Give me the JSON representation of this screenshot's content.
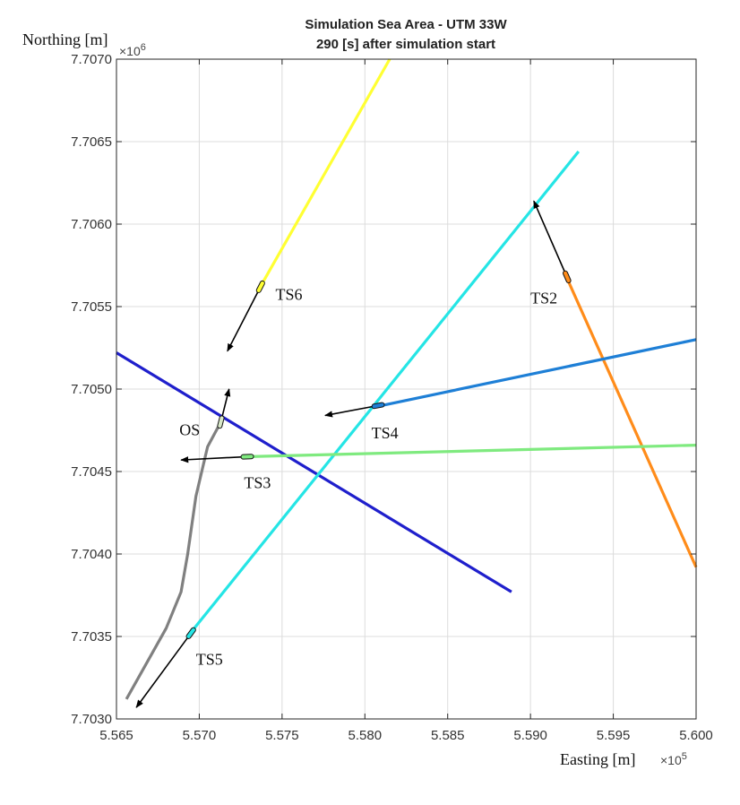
{
  "chart_data": {
    "type": "line",
    "title": "Simulation Sea Area - UTM 33W",
    "subtitle": "290 [s] after simulation start",
    "xlabel": "Easting [m]",
    "ylabel": "Northing [m]",
    "x_multiplier": "×10",
    "x_multiplier_exp": "5",
    "y_multiplier": "×10",
    "y_multiplier_exp": "6",
    "xlim": [
      556500,
      560000
    ],
    "ylim": [
      7703000,
      7707000
    ],
    "xticks": [
      556500,
      557000,
      557500,
      558000,
      558500,
      559000,
      559500,
      560000
    ],
    "xtick_labels": [
      "5.565",
      "5.570",
      "5.575",
      "5.580",
      "5.585",
      "5.590",
      "5.595",
      "5.600"
    ],
    "yticks": [
      7703000,
      7703500,
      7704000,
      7704500,
      7705000,
      7705500,
      7706000,
      7706500,
      7707000
    ],
    "ytick_labels": [
      "7.7030",
      "7.7035",
      "7.7040",
      "7.7045",
      "7.7050",
      "7.7055",
      "7.7060",
      "7.7065",
      "7.7070"
    ],
    "grid": true,
    "series": [
      {
        "color": "#1f1fcc",
        "points": [
          [
            556500,
            7705220
          ],
          [
            558885,
            7703770
          ]
        ]
      },
      {
        "color": "#25e5e5",
        "points": [
          [
            556970,
            7703550
          ],
          [
            559290,
            7706440
          ]
        ]
      },
      {
        "color": "#ffff33",
        "points": [
          [
            557380,
            7705640
          ],
          [
            558150,
            7707000
          ]
        ]
      },
      {
        "color": "#ff8c1a",
        "points": [
          [
            559230,
            7705650
          ],
          [
            560000,
            7703920
          ]
        ]
      },
      {
        "color": "#1e7fd6",
        "points": [
          [
            558100,
            7704900
          ],
          [
            560000,
            7705300
          ]
        ]
      },
      {
        "color": "#7fea7f",
        "points": [
          [
            557300,
            7704590
          ],
          [
            560000,
            7704660
          ]
        ]
      },
      {
        "color": "#808080",
        "points": [
          [
            556560,
            7703120
          ],
          [
            556800,
            7703550
          ],
          [
            556890,
            7703770
          ],
          [
            556930,
            7704000
          ],
          [
            556980,
            7704350
          ],
          [
            557050,
            7704650
          ],
          [
            557130,
            7704800
          ]
        ]
      }
    ],
    "vessels": [
      {
        "label": "OS",
        "pos": [
          557130,
          7704800
        ],
        "arrow_to": [
          557180,
          7705000
        ],
        "hull": "#d8e8c8",
        "label_pos": [
          556880,
          7704720
        ]
      },
      {
        "label": "TS2",
        "pos": [
          559220,
          7705680
        ],
        "arrow_to": [
          559020,
          7706140
        ],
        "hull": "#ff8c1a",
        "label_pos": [
          559000,
          7705520
        ]
      },
      {
        "label": "TS3",
        "pos": [
          557290,
          7704590
        ],
        "arrow_to": [
          556890,
          7704570
        ],
        "hull": "#7fea7f",
        "label_pos": [
          557270,
          7704400
        ]
      },
      {
        "label": "TS4",
        "pos": [
          558080,
          7704900
        ],
        "arrow_to": [
          557760,
          7704840
        ],
        "hull": "#1e7fd6",
        "label_pos": [
          558040,
          7704700
        ]
      },
      {
        "label": "TS5",
        "pos": [
          556950,
          7703520
        ],
        "arrow_to": [
          556620,
          7703070
        ],
        "hull": "#25e5e5",
        "label_pos": [
          556980,
          7703330
        ]
      },
      {
        "label": "TS6",
        "pos": [
          557370,
          7705620
        ],
        "arrow_to": [
          557170,
          7705230
        ],
        "hull": "#ffff33",
        "label_pos": [
          557460,
          7705540
        ]
      }
    ]
  }
}
